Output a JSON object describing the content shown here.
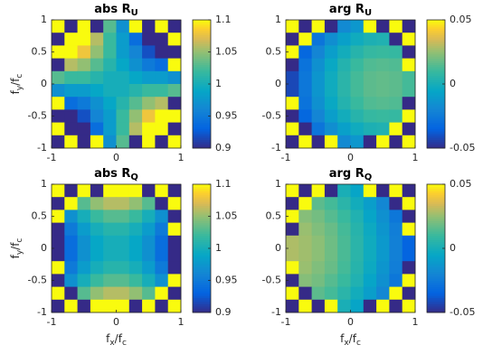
{
  "chart_data": [
    {
      "type": "heatmap",
      "title": [
        "abs R",
        "U"
      ],
      "colormap": "parula",
      "ylabel": [
        "f",
        "y",
        "/f",
        "c"
      ],
      "x": [
        -0.9,
        -0.7,
        -0.5,
        -0.3,
        -0.1,
        0.1,
        0.3,
        0.5,
        0.7,
        0.9
      ],
      "y": [
        0.9,
        0.7,
        0.5,
        0.3,
        0.1,
        -0.1,
        -0.3,
        -0.5,
        -0.7,
        -0.9
      ],
      "xlim": [
        -1,
        1
      ],
      "ylim": [
        -1,
        1
      ],
      "xticks": [
        -1,
        0,
        1
      ],
      "yticks": [
        1,
        0.5,
        0,
        -0.5,
        -1
      ],
      "clim": [
        0.9,
        1.1
      ],
      "cticks": [
        0.9,
        0.95,
        1,
        1.05,
        1.1
      ],
      "values": [
        [
          1.1,
          0.9,
          1.1,
          0.9,
          1.03,
          0.97,
          1.1,
          0.9,
          1.1,
          0.9
        ],
        [
          0.9,
          1.1,
          1.1,
          1.06,
          1.02,
          0.98,
          0.94,
          0.9,
          0.9,
          1.1
        ],
        [
          1.1,
          1.1,
          1.08,
          1.05,
          1.02,
          0.98,
          0.96,
          0.92,
          0.9,
          0.9
        ],
        [
          0.9,
          1.06,
          1.05,
          1.03,
          1.01,
          0.99,
          0.97,
          0.95,
          0.94,
          1.1
        ],
        [
          1.03,
          1.02,
          1.02,
          1.01,
          1.0,
          1.0,
          0.99,
          0.98,
          0.98,
          0.97
        ],
        [
          0.97,
          0.98,
          0.98,
          0.99,
          1.0,
          1.0,
          1.01,
          1.02,
          1.02,
          1.03
        ],
        [
          1.1,
          0.94,
          0.95,
          0.97,
          0.99,
          1.01,
          1.03,
          1.05,
          1.06,
          0.9
        ],
        [
          0.9,
          0.9,
          0.92,
          0.96,
          0.98,
          1.02,
          1.05,
          1.08,
          1.1,
          1.1
        ],
        [
          1.1,
          0.9,
          0.9,
          0.94,
          0.98,
          1.02,
          1.06,
          1.1,
          1.1,
          0.9
        ],
        [
          0.9,
          1.1,
          0.9,
          1.1,
          0.97,
          1.03,
          0.9,
          1.1,
          0.9,
          1.1
        ]
      ]
    },
    {
      "type": "heatmap",
      "title": [
        "arg R",
        "U"
      ],
      "colormap": "parula",
      "x": [
        -0.9,
        -0.7,
        -0.5,
        -0.3,
        -0.1,
        0.1,
        0.3,
        0.5,
        0.7,
        0.9
      ],
      "y": [
        0.9,
        0.7,
        0.5,
        0.3,
        0.1,
        -0.1,
        -0.3,
        -0.5,
        -0.7,
        -0.9
      ],
      "xlim": [
        -1,
        1
      ],
      "ylim": [
        -1,
        1
      ],
      "xticks": [
        -1,
        0,
        1
      ],
      "yticks": [
        1,
        0.5,
        0,
        -0.5,
        -1
      ],
      "clim": [
        -0.05,
        0.05
      ],
      "cticks": [
        -0.05,
        0,
        0.05
      ],
      "values": [
        [
          0.05,
          -0.05,
          0.05,
          -0.05,
          -0.018,
          -0.012,
          0.05,
          -0.05,
          0.05,
          -0.05
        ],
        [
          -0.05,
          0.05,
          -0.027,
          -0.016,
          -0.008,
          -0.002,
          0.002,
          0.003,
          -0.05,
          0.05
        ],
        [
          0.05,
          -0.033,
          -0.02,
          -0.009,
          -0.001,
          0.005,
          0.009,
          0.01,
          0.009,
          -0.05
        ],
        [
          -0.05,
          -0.028,
          -0.015,
          -0.004,
          0.004,
          0.01,
          0.014,
          0.015,
          0.014,
          0.05
        ],
        [
          -0.042,
          -0.026,
          -0.013,
          -0.002,
          0.006,
          0.012,
          0.016,
          0.017,
          0.016,
          0.012
        ],
        [
          -0.042,
          -0.026,
          -0.013,
          -0.002,
          0.006,
          0.012,
          0.016,
          0.017,
          0.016,
          0.012
        ],
        [
          0.05,
          -0.028,
          -0.015,
          -0.004,
          0.004,
          0.01,
          0.014,
          0.015,
          0.014,
          -0.05
        ],
        [
          -0.05,
          -0.033,
          -0.02,
          -0.009,
          -0.001,
          0.005,
          0.009,
          0.01,
          0.009,
          0.05
        ],
        [
          0.05,
          -0.05,
          -0.027,
          -0.016,
          -0.008,
          -0.002,
          0.002,
          0.003,
          0.05,
          -0.05
        ],
        [
          -0.05,
          0.05,
          -0.05,
          0.05,
          -0.018,
          -0.012,
          -0.05,
          0.05,
          -0.05,
          0.05
        ]
      ]
    },
    {
      "type": "heatmap",
      "title": [
        "abs R",
        "Q"
      ],
      "colormap": "parula",
      "ylabel": [
        "f",
        "y",
        "/f",
        "c"
      ],
      "xlabel": [
        "f",
        "x",
        "/f",
        "c"
      ],
      "x": [
        -0.9,
        -0.7,
        -0.5,
        -0.3,
        -0.1,
        0.1,
        0.3,
        0.5,
        0.7,
        0.9
      ],
      "y": [
        0.9,
        0.7,
        0.5,
        0.3,
        0.1,
        -0.1,
        -0.3,
        -0.5,
        -0.7,
        -0.9
      ],
      "xlim": [
        -1,
        1
      ],
      "ylim": [
        -1,
        1
      ],
      "xticks": [
        -1,
        0,
        1
      ],
      "yticks": [
        1,
        0.5,
        0,
        -0.5,
        -1
      ],
      "clim": [
        0.9,
        1.1
      ],
      "cticks": [
        0.9,
        0.95,
        1,
        1.05,
        1.1
      ],
      "values": [
        [
          1.1,
          0.9,
          1.1,
          0.9,
          1.1,
          1.1,
          1.1,
          0.9,
          1.1,
          0.9
        ],
        [
          0.9,
          1.1,
          1.03,
          1.05,
          1.06,
          1.06,
          1.05,
          1.03,
          0.9,
          1.1
        ],
        [
          1.1,
          0.97,
          1.0,
          1.02,
          1.03,
          1.03,
          1.02,
          1.0,
          0.97,
          0.9
        ],
        [
          0.9,
          0.95,
          0.98,
          1.0,
          1.01,
          1.01,
          1.0,
          0.98,
          0.95,
          1.1
        ],
        [
          0.9,
          0.94,
          0.97,
          0.99,
          1.0,
          1.0,
          0.99,
          0.97,
          0.94,
          0.9
        ],
        [
          0.9,
          0.94,
          0.97,
          0.99,
          1.0,
          1.0,
          0.99,
          0.97,
          0.94,
          0.9
        ],
        [
          1.1,
          0.95,
          0.98,
          1.0,
          1.01,
          1.01,
          1.0,
          0.98,
          0.95,
          0.9
        ],
        [
          0.9,
          0.97,
          1.0,
          1.02,
          1.03,
          1.03,
          1.02,
          1.0,
          0.97,
          1.1
        ],
        [
          1.1,
          0.9,
          1.03,
          1.05,
          1.06,
          1.06,
          1.05,
          1.03,
          1.1,
          0.9
        ],
        [
          0.9,
          1.1,
          0.9,
          1.1,
          1.1,
          1.1,
          0.9,
          1.1,
          0.9,
          1.1
        ]
      ]
    },
    {
      "type": "heatmap",
      "title": [
        "arg R",
        "Q"
      ],
      "colormap": "parula",
      "xlabel": [
        "f",
        "x",
        "/f",
        "c"
      ],
      "x": [
        -0.9,
        -0.7,
        -0.5,
        -0.3,
        -0.1,
        0.1,
        0.3,
        0.5,
        0.7,
        0.9
      ],
      "y": [
        0.9,
        0.7,
        0.5,
        0.3,
        0.1,
        -0.1,
        -0.3,
        -0.5,
        -0.7,
        -0.9
      ],
      "xlim": [
        -1,
        1
      ],
      "ylim": [
        -1,
        1
      ],
      "xticks": [
        -1,
        0,
        1
      ],
      "yticks": [
        1,
        0.5,
        0,
        -0.5,
        -1
      ],
      "clim": [
        -0.05,
        0.05
      ],
      "cticks": [
        -0.05,
        0,
        0.05
      ],
      "values": [
        [
          0.05,
          -0.05,
          0.05,
          -0.05,
          0.001,
          -0.006,
          0.05,
          -0.05,
          0.05,
          -0.05
        ],
        [
          -0.05,
          0.05,
          0.016,
          0.012,
          0.006,
          -0.001,
          -0.009,
          -0.019,
          -0.05,
          0.05
        ],
        [
          0.05,
          0.023,
          0.02,
          0.015,
          0.01,
          0.003,
          -0.006,
          -0.015,
          -0.026,
          -0.05
        ],
        [
          -0.05,
          0.026,
          0.022,
          0.018,
          0.012,
          0.005,
          -0.003,
          -0.013,
          -0.023,
          0.05
        ],
        [
          0.029,
          0.027,
          0.024,
          0.019,
          0.013,
          0.006,
          -0.002,
          -0.011,
          -0.022,
          -0.034
        ],
        [
          0.029,
          0.027,
          0.024,
          0.019,
          0.013,
          0.006,
          -0.002,
          -0.011,
          -0.022,
          -0.034
        ],
        [
          0.05,
          0.026,
          0.022,
          0.018,
          0.012,
          0.005,
          -0.003,
          -0.013,
          -0.023,
          -0.05
        ],
        [
          -0.05,
          0.023,
          0.02,
          0.015,
          0.01,
          0.003,
          -0.006,
          -0.015,
          -0.026,
          0.05
        ],
        [
          0.05,
          -0.05,
          0.016,
          0.012,
          0.006,
          -0.001,
          -0.009,
          -0.019,
          0.05,
          -0.05
        ],
        [
          -0.05,
          0.05,
          -0.05,
          0.05,
          0.001,
          -0.006,
          -0.05,
          0.05,
          -0.05,
          0.05
        ]
      ]
    }
  ]
}
